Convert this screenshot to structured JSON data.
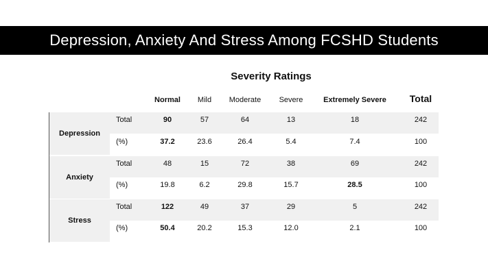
{
  "title": "Depression, Anxiety And Stress Among FCSHD Students",
  "table": {
    "subtitle": "Severity Ratings",
    "headers": [
      "Normal",
      "Mild",
      "Moderate",
      "Severe",
      "Extremely Severe",
      "Total"
    ],
    "groups": [
      {
        "name": "Depression",
        "rows": [
          {
            "label": "Total",
            "values": [
              "90",
              "57",
              "64",
              "13",
              "18",
              "242"
            ]
          },
          {
            "label": "(%)",
            "values": [
              "37.2",
              "23.6",
              "26.4",
              "5.4",
              "7.4",
              "100"
            ]
          }
        ]
      },
      {
        "name": "Anxiety",
        "rows": [
          {
            "label": "Total",
            "values": [
              "48",
              "15",
              "72",
              "38",
              "69",
              "242"
            ]
          },
          {
            "label": "(%)",
            "values": [
              "19.8",
              "6.2",
              "29.8",
              "15.7",
              "28.5",
              "100"
            ]
          }
        ]
      },
      {
        "name": "Stress",
        "rows": [
          {
            "label": "Total",
            "values": [
              "122",
              "49",
              "37",
              "29",
              "5",
              "242"
            ]
          },
          {
            "label": "(%)",
            "values": [
              "50.4",
              "20.2",
              "15.3",
              "12.0",
              "2.1",
              "100"
            ]
          }
        ]
      }
    ]
  }
}
